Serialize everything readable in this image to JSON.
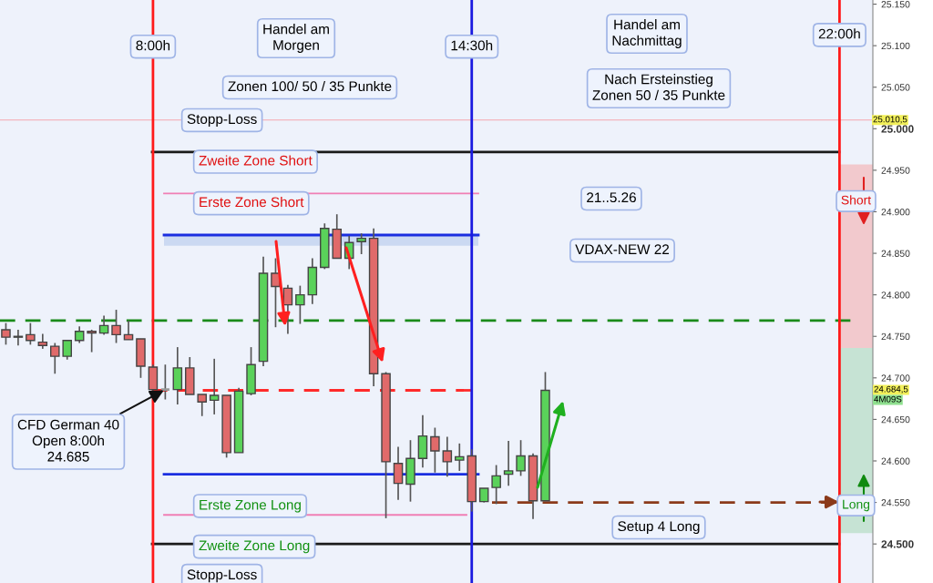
{
  "chart_data": {
    "type": "candlestick",
    "series": [
      {
        "x": [
          5.0,
          5.25,
          5.5,
          5.75,
          6.0,
          6.25,
          6.5,
          6.75,
          7.0,
          7.25,
          7.5,
          7.75,
          8.0,
          8.25,
          8.5,
          8.75,
          9.0,
          9.25,
          9.5,
          9.75,
          10.0,
          10.25,
          10.5,
          10.75,
          11.0,
          11.25,
          11.5,
          11.75,
          12.0,
          12.25,
          12.5,
          12.75,
          13.0,
          13.25,
          13.5,
          13.75,
          14.0,
          14.25,
          14.5,
          14.75,
          15.0,
          15.25,
          15.5,
          15.75,
          16.0
        ],
        "ohlc": [
          [
            24758,
            24766,
            24740,
            24749
          ],
          [
            24749,
            24758,
            24739,
            24750
          ],
          [
            24752,
            24766,
            24740,
            24745
          ],
          [
            24743,
            24753,
            24735,
            24739
          ],
          [
            24738,
            24742,
            24705,
            24726
          ],
          [
            24726,
            24745,
            24722,
            24745
          ],
          [
            24745,
            24762,
            24742,
            24756
          ],
          [
            24756,
            24758,
            24731,
            24754
          ],
          [
            24754,
            24775,
            24752,
            24763
          ],
          [
            24763,
            24782,
            24742,
            24752
          ],
          [
            24752,
            24769,
            24746,
            24746
          ],
          [
            24747,
            24747,
            24700,
            24714
          ],
          [
            24713,
            24716,
            24683,
            24686
          ],
          [
            24686,
            24716,
            24674,
            24686
          ],
          [
            24686,
            24737,
            24668,
            24712
          ],
          [
            24712,
            24725,
            24680,
            24680
          ],
          [
            24680,
            24680,
            24654,
            24671
          ],
          [
            24673,
            24723,
            24656,
            24679
          ],
          [
            24679,
            24679,
            24604,
            24610
          ],
          [
            24610,
            24688,
            24610,
            24684
          ],
          [
            24681,
            24737,
            24679,
            24716
          ],
          [
            24720,
            24846,
            24714,
            24826
          ],
          [
            24826,
            24844,
            24761,
            24810
          ],
          [
            24808,
            24812,
            24753,
            24788
          ],
          [
            24788,
            24811,
            24765,
            24800
          ],
          [
            24800,
            24844,
            24789,
            24833
          ],
          [
            24833,
            24886,
            24831,
            24880
          ],
          [
            24879,
            24897,
            24844,
            24844
          ],
          [
            24844,
            24871,
            24831,
            24863
          ],
          [
            24864,
            24874,
            24849,
            24868
          ],
          [
            24868,
            24880,
            24690,
            24705
          ],
          [
            24705,
            24707,
            24531,
            24599
          ],
          [
            24597,
            24617,
            24553,
            24573
          ],
          [
            24572,
            24625,
            24551,
            24603
          ],
          [
            24603,
            24655,
            24592,
            24630
          ],
          [
            24629,
            24640,
            24586,
            24612
          ],
          [
            24612,
            24629,
            24581,
            24599
          ],
          [
            24601,
            24621,
            24588,
            24605
          ],
          [
            24606,
            24614,
            24539,
            24551
          ],
          [
            24551,
            24567,
            24550,
            24567
          ],
          [
            24568,
            24595,
            24548,
            24582
          ],
          [
            24584,
            24624,
            24570,
            24588
          ],
          [
            24588,
            24625,
            24582,
            24606
          ],
          [
            24606,
            24609,
            24530,
            24552
          ],
          [
            24552,
            24707,
            24552,
            24685
          ]
        ],
        "colors": [
          "#e06a6a",
          "#5ad25a",
          "#e06a6a",
          "#e06a6a",
          "#e06a6a",
          "#5ad25a",
          "#5ad25a",
          "#e06a6a",
          "#5ad25a",
          "#e06a6a",
          "#e06a6a",
          "#e06a6a",
          "#e06a6a",
          "#999999",
          "#5ad25a",
          "#e06a6a",
          "#e06a6a",
          "#5ad25a",
          "#e06a6a",
          "#5ad25a",
          "#5ad25a",
          "#5ad25a",
          "#e06a6a",
          "#e06a6a",
          "#5ad25a",
          "#5ad25a",
          "#5ad25a",
          "#e06a6a",
          "#5ad25a",
          "#5ad25a",
          "#e06a6a",
          "#e06a6a",
          "#e06a6a",
          "#5ad25a",
          "#5ad25a",
          "#e06a6a",
          "#e06a6a",
          "#5ad25a",
          "#e06a6a",
          "#5ad25a",
          "#5ad25a",
          "#5ad25a",
          "#5ad25a",
          "#e06a6a",
          "#5ad25a"
        ]
      }
    ],
    "xlim": [
      4.88,
      22.68
    ],
    "ylim": [
      24453,
      25155
    ],
    "yticks": [
      {
        "value": 24500,
        "label": "24.500"
      },
      {
        "value": 24550,
        "label": "24.550"
      },
      {
        "value": 24600,
        "label": "24.600"
      },
      {
        "value": 24650,
        "label": "24.650"
      },
      {
        "value": 24700,
        "label": "24.700"
      },
      {
        "value": 24750,
        "label": "24.750"
      },
      {
        "value": 24800,
        "label": "24.800"
      },
      {
        "value": 24850,
        "label": "24.850"
      },
      {
        "value": 24900,
        "label": "24.900"
      },
      {
        "value": 24950,
        "label": "24.950"
      },
      {
        "value": 25000,
        "label": "25.000"
      },
      {
        "value": 25050,
        "label": "25.050"
      },
      {
        "value": 25100,
        "label": "25.100"
      },
      {
        "value": 25150,
        "label": "25.150"
      }
    ],
    "tick_labels": "y",
    "ref_lines": [
      {
        "axis": "x",
        "value": 8,
        "label": "8:00h",
        "color": "#ff1a1a"
      },
      {
        "axis": "x",
        "value": 14.5,
        "label": "14:30h",
        "color": "#1a1ae0"
      },
      {
        "axis": "x",
        "value": 22,
        "label": "22:00h",
        "color": "#ff1a1a"
      },
      {
        "axis": "y",
        "value": 25010.5,
        "color": "#f4a6ae"
      },
      {
        "axis": "y",
        "value": 24972,
        "label": "Stopp-Loss",
        "color": "#1a1a1a"
      },
      {
        "axis": "y",
        "value": 24922,
        "label": "Zweite Zone Short",
        "color": "#f07fb4"
      },
      {
        "axis": "y",
        "value": 24872,
        "label": "Erste Zone Short",
        "color": "#1a2ee0"
      },
      {
        "axis": "y",
        "value": 24769,
        "color": "#1a8a1a",
        "line_style": "dashed"
      },
      {
        "axis": "y",
        "value": 24685,
        "color": "#ff2a2a",
        "line_style": "dashed"
      },
      {
        "axis": "y",
        "value": 24584,
        "label": "Erste Zone Long",
        "color": "#1a2ee0"
      },
      {
        "axis": "y",
        "value": 24535,
        "label": "Zweite Zone Long",
        "color": "#f07fb4"
      },
      {
        "axis": "y",
        "value": 24550,
        "color": "#8b3a1a",
        "line_style": "dashed"
      },
      {
        "axis": "y",
        "value": 24500,
        "label": "Stopp-Loss",
        "color": "#1a1a1a"
      }
    ],
    "bands": [
      {
        "axis": "y",
        "from": 24859,
        "to": 24872,
        "color": "#cbd9f2"
      },
      {
        "axis": "y",
        "from": 24736,
        "to": 24957,
        "label": "Short",
        "color": "#f2c9cd"
      },
      {
        "axis": "y",
        "from": 24513,
        "to": 24736,
        "label": "Long",
        "color": "#c6e3d4"
      }
    ],
    "annotations": [
      "Handel am\nMorgen",
      "Zonen 100/ 50 / 35 Punkte",
      "Handel am\nNachmittag",
      "Nach Ersteinstieg\nZonen 50 / 35 Punkte",
      "21..5.26",
      "VDAX-NEW 22",
      {
        "text": "CFD German 40\nOpen 8:00h\n24.685",
        "x": 8.22,
        "y": 24685
      },
      "Setup 4 Long",
      {
        "text": "25.010,5",
        "x": 22.68,
        "y": 25010.5
      },
      "24.684,5",
      "4M09S"
    ]
  }
}
